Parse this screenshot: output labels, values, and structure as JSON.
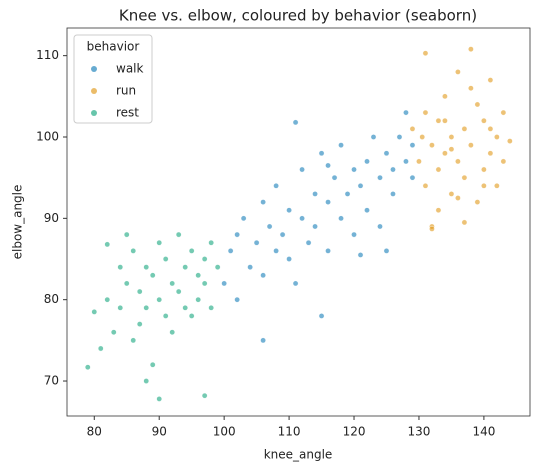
{
  "chart_data": {
    "type": "scatter",
    "title": "Knee vs. elbow, coloured by behavior (seaborn)",
    "x_label": "knee_angle",
    "y_label": "elbow_angle",
    "legend_title": "behavior",
    "legend": "upper left",
    "xlim": [
      75.8,
      147.1
    ],
    "xticks": [
      80,
      90,
      100,
      110,
      120,
      130,
      140
    ],
    "ylim": [
      65.7,
      113.4
    ],
    "yticks": [
      70,
      80,
      90,
      100,
      110
    ],
    "series": [
      {
        "name": "walk",
        "color": "#0173b2",
        "x": [
          100,
          101,
          102,
          102,
          103,
          104,
          105,
          106,
          106,
          107,
          108,
          108,
          109,
          110,
          110,
          111,
          112,
          112,
          113,
          114,
          114,
          115,
          116,
          116,
          117,
          118,
          118,
          119,
          120,
          120,
          121,
          122,
          122,
          123,
          124,
          124,
          125,
          126,
          126,
          127,
          128,
          128,
          129,
          129,
          106,
          111,
          115,
          121,
          116,
          125
        ],
        "values": [
          82,
          86,
          88,
          80,
          90,
          84,
          87,
          92,
          83,
          89,
          86,
          94,
          88,
          91,
          85,
          101.8,
          90,
          96,
          87,
          93,
          89,
          98,
          92,
          86,
          95,
          90,
          99,
          93,
          96,
          88,
          94,
          97,
          91,
          100,
          95,
          89,
          98,
          96,
          93,
          100,
          97,
          103,
          99,
          95,
          75,
          82,
          78,
          85.5,
          96.5,
          86
        ]
      },
      {
        "name": "run",
        "color": "#de8f05",
        "x": [
          130,
          130.5,
          131,
          131,
          132,
          132,
          133,
          133,
          134,
          134,
          135,
          135,
          136,
          136,
          137,
          137,
          138,
          138,
          139,
          139,
          140,
          140,
          141,
          141,
          142,
          142,
          143,
          143,
          144,
          131,
          132,
          133,
          137,
          138,
          140,
          135,
          134,
          129,
          136,
          141
        ],
        "values": [
          97,
          100,
          94,
          103,
          99,
          89,
          102,
          96,
          105,
          98,
          93,
          100,
          108,
          97,
          101,
          95,
          110.8,
          99,
          104,
          92,
          102,
          96,
          107,
          98,
          100,
          94,
          103,
          97,
          99.5,
          110.3,
          88.7,
          91,
          89.5,
          106,
          94,
          98.5,
          102,
          101,
          92.5,
          101
        ]
      },
      {
        "name": "rest",
        "color": "#029e73",
        "x": [
          79,
          80,
          81,
          82,
          83,
          84,
          84,
          85,
          85,
          86,
          86,
          87,
          87,
          88,
          88,
          89,
          89,
          90,
          90,
          91,
          91,
          92,
          92,
          93,
          93,
          94,
          94,
          95,
          95,
          96,
          96,
          97,
          97,
          98,
          98,
          99,
          82,
          88,
          90,
          97
        ],
        "values": [
          71.7,
          78.5,
          74,
          80,
          76,
          84,
          79,
          88,
          82,
          75,
          86,
          81,
          77,
          84,
          79,
          72,
          83,
          80,
          87,
          78,
          85,
          82,
          76,
          88,
          81,
          84,
          79,
          86,
          78,
          83,
          80,
          85,
          82,
          87,
          79,
          84,
          86.8,
          70,
          67.8,
          68.2
        ]
      }
    ]
  }
}
